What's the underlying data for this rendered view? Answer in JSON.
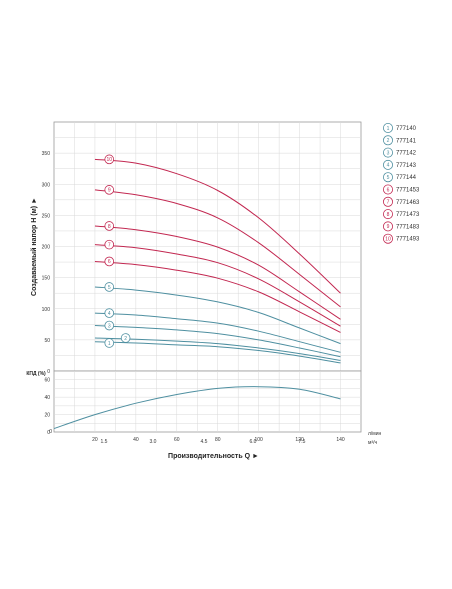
{
  "chart_data": [
    {
      "type": "line",
      "id": "head",
      "title": "",
      "ylabel": "Создаваемый напор H (м) ►",
      "xlabel": "",
      "xlim": [
        0,
        150
      ],
      "ylim": [
        0,
        400
      ],
      "y_ticks": [
        0,
        50,
        100,
        150,
        200,
        250,
        300,
        350
      ],
      "grid": true,
      "legend_position": "right",
      "series": [
        {
          "name": "777140",
          "marker": "1",
          "color": "#4e8fa0",
          "x": [
            20,
            40,
            60,
            80,
            100,
            120,
            140
          ],
          "values": [
            47,
            45,
            42,
            39,
            33,
            24,
            13
          ]
        },
        {
          "name": "777141",
          "marker": "2",
          "color": "#4e8fa0",
          "x": [
            20,
            40,
            60,
            80,
            100,
            120,
            140
          ],
          "values": [
            53,
            51,
            48,
            44,
            37,
            28,
            17
          ]
        },
        {
          "name": "777142",
          "marker": "3",
          "color": "#4e8fa0",
          "x": [
            20,
            40,
            60,
            80,
            100,
            120,
            140
          ],
          "values": [
            73,
            70,
            66,
            60,
            50,
            37,
            23
          ]
        },
        {
          "name": "777143",
          "marker": "4",
          "color": "#4e8fa0",
          "x": [
            20,
            40,
            60,
            80,
            100,
            120,
            140
          ],
          "values": [
            93,
            90,
            84,
            77,
            64,
            47,
            30
          ]
        },
        {
          "name": "777144",
          "marker": "5",
          "color": "#4e8fa0",
          "x": [
            20,
            40,
            60,
            80,
            100,
            120,
            140
          ],
          "values": [
            135,
            130,
            122,
            111,
            94,
            69,
            44
          ]
        },
        {
          "name": "7771453",
          "marker": "6",
          "color": "#c22750",
          "x": [
            20,
            40,
            60,
            80,
            100,
            120,
            140
          ],
          "values": [
            176,
            171,
            162,
            149,
            127,
            95,
            62
          ]
        },
        {
          "name": "7771463",
          "marker": "7",
          "color": "#c22750",
          "x": [
            20,
            40,
            60,
            80,
            100,
            120,
            140
          ],
          "values": [
            203,
            198,
            188,
            174,
            148,
            111,
            72
          ]
        },
        {
          "name": "7771473",
          "marker": "8",
          "color": "#c22750",
          "x": [
            20,
            40,
            60,
            80,
            100,
            120,
            140
          ],
          "values": [
            233,
            227,
            216,
            199,
            170,
            127,
            83
          ]
        },
        {
          "name": "7771483",
          "marker": "9",
          "color": "#c22750",
          "x": [
            20,
            40,
            60,
            80,
            100,
            120,
            140
          ],
          "values": [
            291,
            283,
            269,
            246,
            206,
            155,
            103
          ]
        },
        {
          "name": "7771493",
          "marker": "10",
          "color": "#c22750",
          "x": [
            20,
            40,
            60,
            80,
            100,
            120,
            140
          ],
          "values": [
            340,
            334,
            317,
            290,
            246,
            188,
            125
          ]
        }
      ]
    },
    {
      "type": "line",
      "id": "efficiency",
      "ylabel": "КПД (%)",
      "xlim": [
        0,
        150
      ],
      "ylim": [
        0,
        70
      ],
      "y_ticks": [
        0,
        20,
        40,
        60
      ],
      "grid": true,
      "x_ticks": [
        0,
        20,
        40,
        60,
        80,
        100,
        120,
        140
      ],
      "x_unit": "л/мин",
      "x2_ticks": [
        "1.5",
        "3.0",
        "4.5",
        "6.0",
        "7.5"
      ],
      "x2_unit": "м³/ч",
      "xlabel": "Производительность Q ►",
      "series": [
        {
          "name": "",
          "color": "#4e8fa0",
          "x": [
            0,
            20,
            40,
            60,
            80,
            100,
            120,
            140
          ],
          "values": [
            4,
            20,
            33,
            43,
            50,
            52,
            49,
            38
          ]
        }
      ]
    }
  ]
}
